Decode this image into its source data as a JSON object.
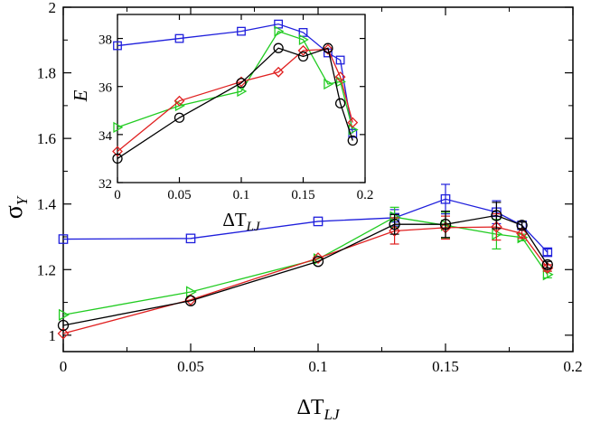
{
  "chart_data": [
    {
      "type": "line",
      "panel": "main",
      "title": "",
      "xlabel": "ΔT",
      "xlabel_sub": "LJ",
      "ylabel": "σ",
      "ylabel_sub": "Y",
      "xlim": [
        0,
        0.2
      ],
      "ylim": [
        0.95,
        2.0
      ],
      "xticks": [
        0,
        0.05,
        0.1,
        0.15,
        0.2
      ],
      "xtick_labels": [
        "0",
        "0.05",
        "0.1",
        "0.15",
        "0.2"
      ],
      "yticks": [
        1.0,
        1.2,
        1.4,
        1.6,
        1.8,
        2.0
      ],
      "ytick_labels": [
        "1",
        "1.2",
        "1.4",
        "1.6",
        "1.8",
        "2"
      ],
      "grid": false,
      "series": [
        {
          "name": "square",
          "color": "#1f1fdc",
          "marker": "square",
          "x": [
            0,
            0.05,
            0.1,
            0.13,
            0.15,
            0.17,
            0.18,
            0.19
          ],
          "values": [
            1.293,
            1.295,
            1.347,
            1.358,
            1.415,
            1.375,
            1.335,
            1.253
          ],
          "errors": [
            0,
            0,
            0,
            0.025,
            0.045,
            0.035,
            0.01,
            0.01
          ]
        },
        {
          "name": "triangle-right",
          "color": "#22cc22",
          "marker": "triangle-right",
          "x": [
            0,
            0.05,
            0.1,
            0.13,
            0.15,
            0.17,
            0.18,
            0.19
          ],
          "values": [
            1.062,
            1.132,
            1.232,
            1.36,
            1.335,
            1.308,
            1.298,
            1.185
          ],
          "errors": [
            0,
            0,
            0,
            0.03,
            0.04,
            0.045,
            0.01,
            0.01
          ]
        },
        {
          "name": "diamond",
          "color": "#e02020",
          "marker": "diamond",
          "x": [
            0,
            0.05,
            0.1,
            0.13,
            0.15,
            0.17,
            0.18,
            0.19
          ],
          "values": [
            1.005,
            1.108,
            1.235,
            1.318,
            1.328,
            1.33,
            1.31,
            1.205
          ],
          "errors": [
            0,
            0,
            0,
            0.04,
            0.035,
            0.04,
            0.015,
            0.01
          ]
        },
        {
          "name": "circle",
          "color": "#000000",
          "marker": "circle",
          "x": [
            0,
            0.05,
            0.1,
            0.13,
            0.15,
            0.17,
            0.18,
            0.19
          ],
          "values": [
            1.03,
            1.105,
            1.225,
            1.338,
            1.338,
            1.365,
            1.335,
            1.215
          ],
          "errors": [
            0,
            0,
            0,
            0.03,
            0.04,
            0.04,
            0.01,
            0.01
          ]
        }
      ]
    },
    {
      "type": "line",
      "panel": "inset",
      "title": "",
      "xlabel": "ΔT",
      "xlabel_sub": "LJ",
      "ylabel": "E",
      "xlim": [
        0,
        0.2
      ],
      "ylim": [
        32,
        39
      ],
      "xticks": [
        0,
        0.05,
        0.1,
        0.15,
        0.2
      ],
      "xtick_labels": [
        "0",
        "0.05",
        "0.1",
        "0.15",
        "0.2"
      ],
      "yticks": [
        32,
        34,
        36,
        38
      ],
      "ytick_labels": [
        "32",
        "34",
        "36",
        "38"
      ],
      "grid": false,
      "series": [
        {
          "name": "square",
          "color": "#1f1fdc",
          "marker": "square",
          "x": [
            0,
            0.05,
            0.1,
            0.13,
            0.15,
            0.17,
            0.18,
            0.19
          ],
          "values": [
            37.7,
            38.0,
            38.3,
            38.6,
            38.25,
            37.4,
            37.1,
            34.05
          ]
        },
        {
          "name": "triangle-right",
          "color": "#22cc22",
          "marker": "triangle-right",
          "x": [
            0,
            0.05,
            0.1,
            0.13,
            0.15,
            0.17,
            0.18,
            0.19
          ],
          "values": [
            34.3,
            35.2,
            35.8,
            38.3,
            37.95,
            36.1,
            36.2,
            34.2
          ]
        },
        {
          "name": "diamond",
          "color": "#e02020",
          "marker": "diamond",
          "x": [
            0,
            0.05,
            0.1,
            0.13,
            0.15,
            0.17,
            0.18,
            0.19
          ],
          "values": [
            33.3,
            35.4,
            36.2,
            36.6,
            37.5,
            37.55,
            36.4,
            34.5
          ]
        },
        {
          "name": "circle",
          "color": "#000000",
          "marker": "circle",
          "x": [
            0,
            0.05,
            0.1,
            0.13,
            0.15,
            0.17,
            0.18,
            0.19
          ],
          "values": [
            33.0,
            34.7,
            36.15,
            37.6,
            37.25,
            37.6,
            35.3,
            33.75
          ]
        }
      ]
    }
  ]
}
